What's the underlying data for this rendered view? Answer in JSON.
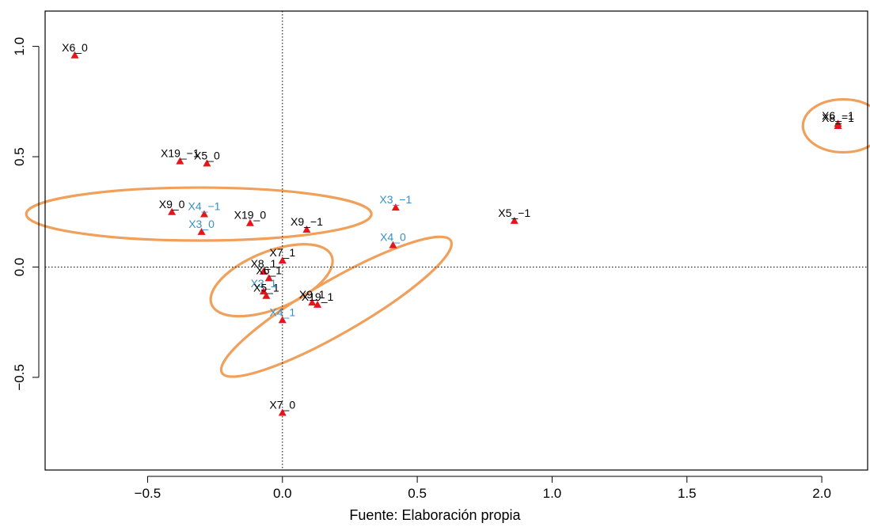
{
  "caption": "Fuente: Elaboración propia",
  "chart_data": {
    "type": "scatter",
    "title": "",
    "xlabel": "",
    "ylabel": "",
    "xlim": [
      -0.88,
      2.17
    ],
    "ylim": [
      -0.92,
      1.16
    ],
    "grid": false,
    "reference_lines": {
      "x": 0.0,
      "y": 0.0,
      "style": "dotted"
    },
    "x_ticks": [
      -0.5,
      0.0,
      0.5,
      1.0,
      1.5,
      2.0
    ],
    "x_tick_labels": [
      "−0.5",
      "0.0",
      "0.5",
      "1.0",
      "1.5",
      "2.0"
    ],
    "y_ticks": [
      -0.5,
      0.0,
      0.5,
      1.0
    ],
    "y_tick_labels": [
      "−0.5",
      "0.0",
      "0.5",
      "1.0"
    ],
    "marker": {
      "shape": "triangle",
      "color": "#e8141b"
    },
    "label_colors": {
      "black": "#000000",
      "blue": "#3a8fc4"
    },
    "ellipse_color": "#f0a05a",
    "points": [
      {
        "label": "X6_0",
        "x": -0.77,
        "y": 0.96,
        "color": "black"
      },
      {
        "label": "X19_−1",
        "x": -0.38,
        "y": 0.48,
        "color": "black"
      },
      {
        "label": "X5_0",
        "x": -0.28,
        "y": 0.47,
        "color": "black"
      },
      {
        "label": "X9_0",
        "x": -0.41,
        "y": 0.25,
        "color": "black"
      },
      {
        "label": "X4_−1",
        "x": -0.29,
        "y": 0.24,
        "color": "blue"
      },
      {
        "label": "X19_0",
        "x": -0.12,
        "y": 0.2,
        "color": "black"
      },
      {
        "label": "X3_0",
        "x": -0.3,
        "y": 0.16,
        "color": "blue"
      },
      {
        "label": "X9_−1",
        "x": 0.09,
        "y": 0.17,
        "color": "black"
      },
      {
        "label": "X3_−1",
        "x": 0.42,
        "y": 0.27,
        "color": "blue"
      },
      {
        "label": "X4_0",
        "x": 0.41,
        "y": 0.1,
        "color": "blue"
      },
      {
        "label": "X5_−1",
        "x": 0.86,
        "y": 0.21,
        "color": "black"
      },
      {
        "label": "X6_−1",
        "x": 2.06,
        "y": 0.65,
        "color": "black"
      },
      {
        "label": "X8_−1",
        "x": 2.06,
        "y": 0.64,
        "color": "black"
      },
      {
        "label": "X7_1",
        "x": 0.0,
        "y": 0.03,
        "color": "black"
      },
      {
        "label": "X8_1",
        "x": -0.07,
        "y": -0.02,
        "color": "black"
      },
      {
        "label": "X6_1",
        "x": -0.05,
        "y": -0.05,
        "color": "black"
      },
      {
        "label": "X3_1",
        "x": -0.07,
        "y": -0.11,
        "color": "blue"
      },
      {
        "label": "X5_1",
        "x": -0.06,
        "y": -0.13,
        "color": "black"
      },
      {
        "label": "X9_1",
        "x": 0.11,
        "y": -0.16,
        "color": "black"
      },
      {
        "label": "X19_1",
        "x": 0.13,
        "y": -0.17,
        "color": "black"
      },
      {
        "label": "X4_1",
        "x": 0.0,
        "y": -0.24,
        "color": "blue"
      },
      {
        "label": "X7_0",
        "x": 0.0,
        "y": -0.66,
        "color": "black"
      }
    ],
    "ellipses": [
      {
        "cx": -0.31,
        "cy": 0.24,
        "rx": 0.64,
        "ry": 0.12,
        "angle": 0
      },
      {
        "cx": -0.04,
        "cy": -0.06,
        "rx": 0.24,
        "ry": 0.13,
        "angle": -22
      },
      {
        "cx": 0.2,
        "cy": -0.18,
        "rx": 0.49,
        "ry": 0.12,
        "angle": -30
      },
      {
        "cx": 2.08,
        "cy": 0.64,
        "rx": 0.15,
        "ry": 0.12,
        "angle": 0
      }
    ]
  }
}
